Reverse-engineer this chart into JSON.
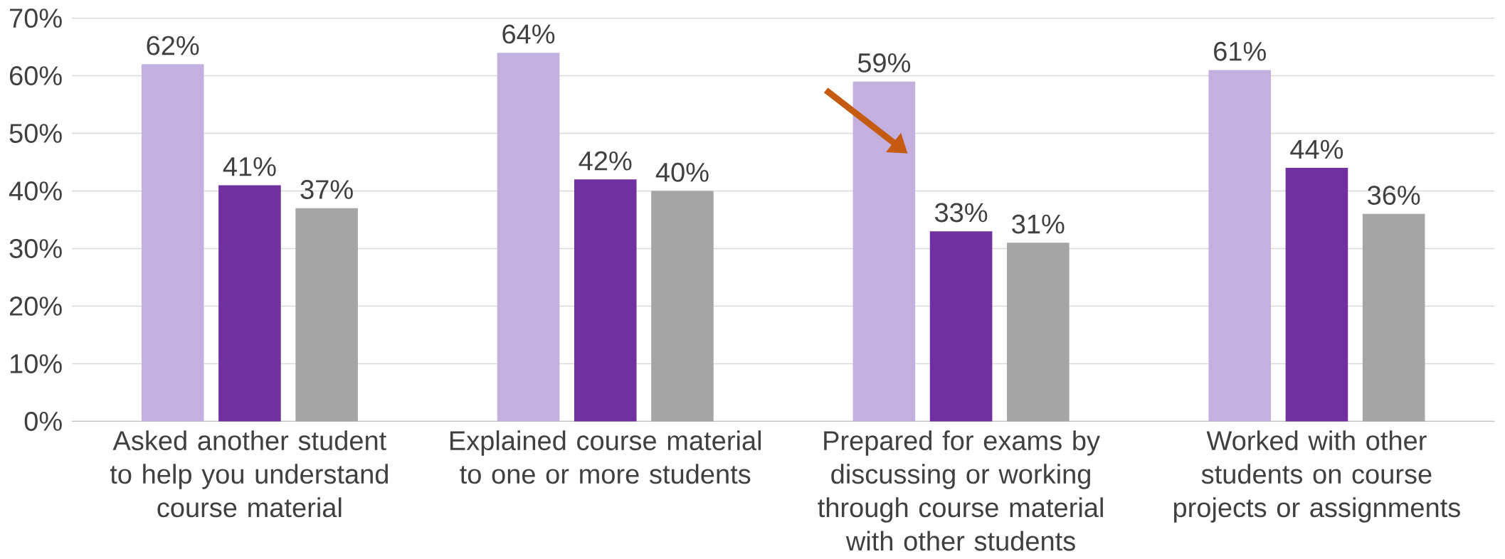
{
  "chart_data": {
    "type": "bar",
    "categories": [
      "Asked another student to help you understand course material",
      "Explained course material to one or more students",
      "Prepared for exams by discussing or working through course material with other students",
      "Worked with other students on course projects or assignments"
    ],
    "series": [
      {
        "color": "#c3b0df",
        "values": [
          62,
          64,
          59,
          61
        ],
        "value_labels": [
          "62%",
          "64%",
          "59%",
          "61%"
        ]
      },
      {
        "color": "#7030a0",
        "values": [
          41,
          42,
          33,
          44
        ],
        "value_labels": [
          "41%",
          "42%",
          "33%",
          "44%"
        ]
      },
      {
        "color": "#a5a5a5",
        "values": [
          37,
          40,
          31,
          36
        ],
        "value_labels": [
          "37%",
          "40%",
          "31%",
          "36%"
        ]
      }
    ],
    "ylim": [
      0,
      70
    ],
    "yticks": [
      {
        "value": 0,
        "label": "0%"
      },
      {
        "value": 10,
        "label": "10%"
      },
      {
        "value": 20,
        "label": "20%"
      },
      {
        "value": 30,
        "label": "30%"
      },
      {
        "value": 40,
        "label": "40%"
      },
      {
        "value": 50,
        "label": "50%"
      },
      {
        "value": 60,
        "label": "60%"
      },
      {
        "value": 70,
        "label": "70%"
      }
    ],
    "grid": "y"
  }
}
